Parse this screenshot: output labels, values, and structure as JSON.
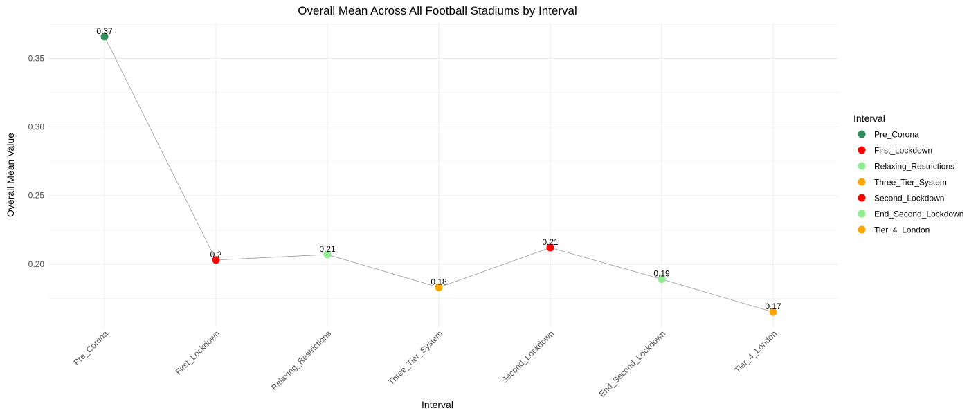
{
  "chart_data": {
    "type": "line",
    "title": "Overall Mean Across All Football Stadiums by Interval",
    "xlabel": "Interval",
    "ylabel": "Overall Mean Value",
    "categories": [
      "Pre_Corona",
      "First_Lockdown",
      "Relaxing_Restrictions",
      "Three_Tier_System",
      "Second_Lockdown",
      "End_Second_Lockdown",
      "Tier_4_London"
    ],
    "values": [
      0.366,
      0.203,
      0.207,
      0.183,
      0.212,
      0.189,
      0.165
    ],
    "data_labels": [
      "0.37",
      "0.2",
      "0.21",
      "0.18",
      "0.21",
      "0.19",
      "0.17"
    ],
    "point_colors": [
      "#2e8b57",
      "#ff0000",
      "#90ee90",
      "#ffa500",
      "#ff0000",
      "#90ee90",
      "#ffa500"
    ],
    "line_color": "#999999",
    "ylim": [
      0.154,
      0.376
    ],
    "yticks": [
      0.2,
      0.25,
      0.3,
      0.35
    ],
    "ytick_labels": [
      "0.20",
      "0.25",
      "0.30",
      "0.35"
    ],
    "grid": true,
    "legend": {
      "title": "Interval",
      "position": "right",
      "entries": [
        "Pre_Corona",
        "First_Lockdown",
        "Relaxing_Restrictions",
        "Three_Tier_System",
        "Second_Lockdown",
        "End_Second_Lockdown",
        "Tier_4_London"
      ]
    }
  }
}
